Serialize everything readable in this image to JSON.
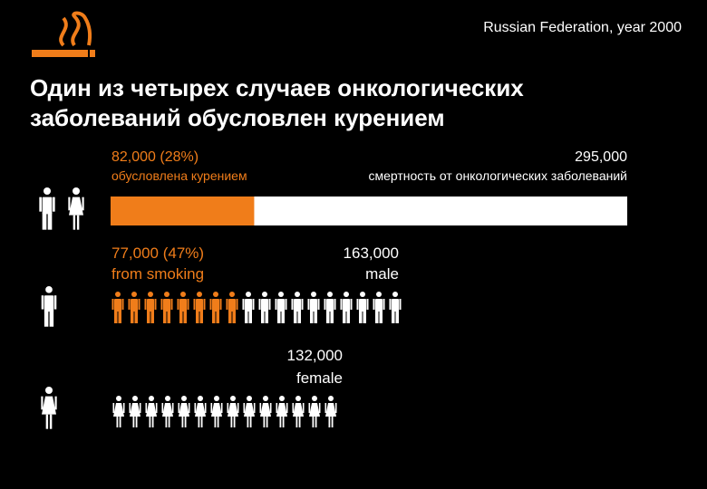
{
  "header": {
    "title": "Russian Federation, year 2000"
  },
  "headline": [
    "Один из четырех случаев онкологических",
    "заболеваний обусловлен курением"
  ],
  "overall": {
    "values": [
      82000,
      295000
    ],
    "value_labels": [
      "82,000 (28%)",
      "295,000"
    ],
    "captions": [
      "обусловлена курением",
      "смертность от онкологических заболеваний"
    ]
  },
  "male": {
    "labels": [
      "77,000 (47%)",
      "from smoking",
      "163,000",
      "male"
    ]
  },
  "female": {
    "labels": [
      "132,000",
      "female"
    ]
  }
}
